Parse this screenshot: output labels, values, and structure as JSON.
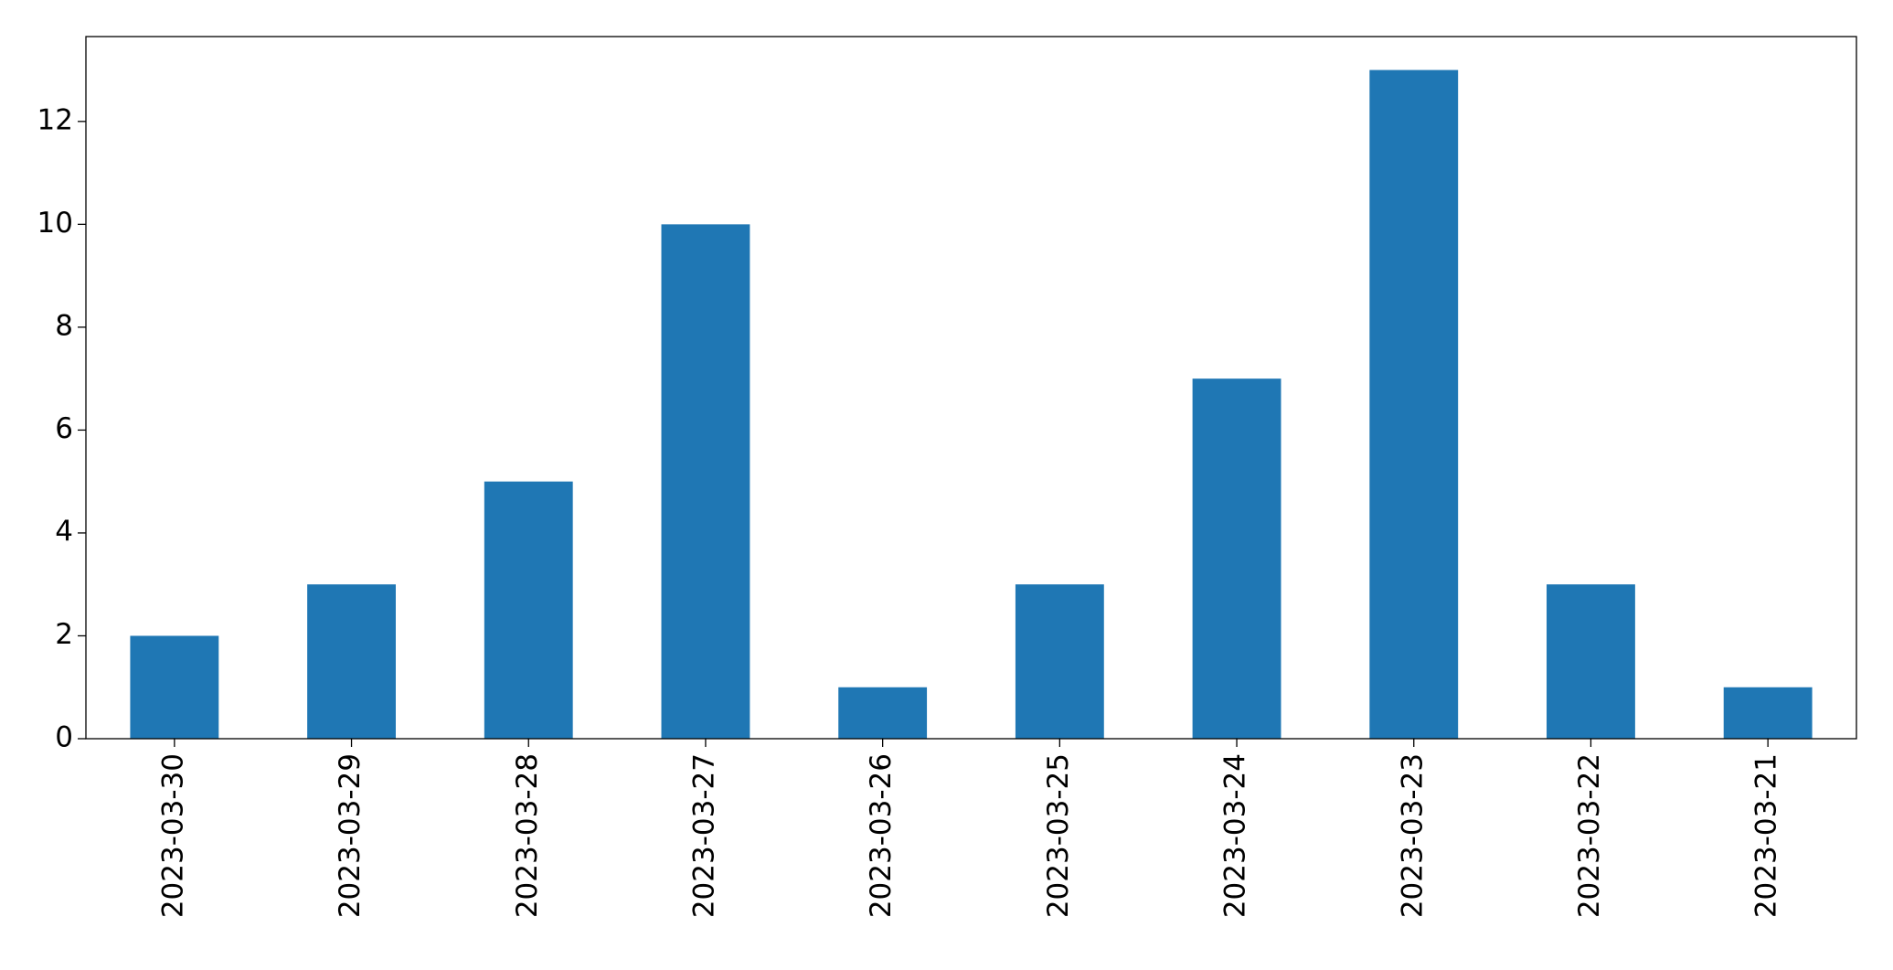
{
  "chart_data": {
    "type": "bar",
    "categories": [
      "2023-03-30",
      "2023-03-29",
      "2023-03-28",
      "2023-03-27",
      "2023-03-26",
      "2023-03-25",
      "2023-03-24",
      "2023-03-23",
      "2023-03-22",
      "2023-03-21"
    ],
    "values": [
      2,
      3,
      5,
      10,
      1,
      3,
      7,
      13,
      3,
      1
    ],
    "color": "#1f77b4",
    "ylim": [
      0,
      13.65
    ],
    "yticks": [
      0,
      2,
      4,
      6,
      8,
      10,
      12
    ],
    "grid": false
  }
}
